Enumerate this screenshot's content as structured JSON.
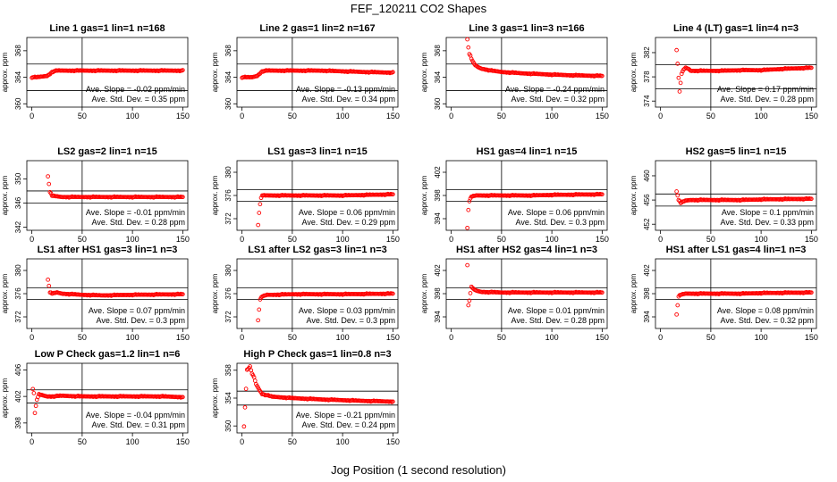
{
  "figure": {
    "title": "FEF_120211  CO2 Shapes",
    "xlabel": "Jog Position (1 second resolution)",
    "marker_color": "#ff0000"
  },
  "chart_data": [
    {
      "type": "scatter",
      "title": "Line 1 gas=1 lin=1 n=168",
      "ylabel": "approx. ppm",
      "xlim": [
        -5,
        155
      ],
      "ylim": [
        359.5,
        370
      ],
      "yticks": [
        360,
        364,
        368
      ],
      "xticks": [
        0,
        50,
        100,
        150
      ],
      "hlines": [
        366,
        362
      ],
      "vline": 50,
      "slope_text": "Ave. Slope = -0.02  ppm/min",
      "std_text": "Ave. Std. Dev. = 0.35  ppm",
      "points": [
        [
          0,
          364.0
        ],
        [
          5,
          364.0
        ],
        [
          10,
          364.1
        ],
        [
          15,
          364.2
        ],
        [
          18,
          364.5
        ],
        [
          20,
          364.8
        ],
        [
          22,
          364.9
        ],
        [
          25,
          365.0
        ],
        [
          30,
          365.0
        ],
        [
          40,
          365.0
        ],
        [
          60,
          365.0
        ],
        [
          80,
          365.0
        ],
        [
          100,
          365.0
        ],
        [
          120,
          365.0
        ],
        [
          150,
          365.0
        ]
      ]
    },
    {
      "type": "scatter",
      "title": "Line 2 gas=1 lin=2 n=167",
      "ylabel": "approx. ppm",
      "xlim": [
        -5,
        155
      ],
      "ylim": [
        359.5,
        370
      ],
      "yticks": [
        360,
        364,
        368
      ],
      "xticks": [
        0,
        50,
        100,
        150
      ],
      "hlines": [
        366,
        362
      ],
      "vline": 50,
      "slope_text": "Ave. Slope = -0.13  ppm/min",
      "std_text": "Ave. Std. Dev. = 0.34  ppm",
      "points": [
        [
          0,
          364.0
        ],
        [
          5,
          364.0
        ],
        [
          10,
          364.0
        ],
        [
          15,
          364.2
        ],
        [
          18,
          364.6
        ],
        [
          20,
          364.9
        ],
        [
          25,
          365.0
        ],
        [
          30,
          365.0
        ],
        [
          50,
          365.0
        ],
        [
          80,
          365.0
        ],
        [
          100,
          364.9
        ],
        [
          120,
          364.8
        ],
        [
          150,
          364.7
        ]
      ]
    },
    {
      "type": "scatter",
      "title": "Line 3 gas=1 lin=3 n=166",
      "ylabel": "approx. ppm",
      "xlim": [
        -5,
        155
      ],
      "ylim": [
        359.5,
        370
      ],
      "yticks": [
        360,
        364,
        368
      ],
      "xticks": [
        0,
        50,
        100,
        150
      ],
      "hlines": [
        366,
        362
      ],
      "vline": 50,
      "slope_text": "Ave. Slope = -0.24  ppm/min",
      "std_text": "Ave. Std. Dev. = 0.32  ppm",
      "points": [
        [
          16,
          369.8
        ],
        [
          17,
          368.5
        ],
        [
          18,
          367.5
        ],
        [
          19,
          367.2
        ],
        [
          20,
          366.8
        ],
        [
          22,
          366.2
        ],
        [
          24,
          365.8
        ],
        [
          27,
          365.5
        ],
        [
          30,
          365.3
        ],
        [
          40,
          365.0
        ],
        [
          50,
          364.8
        ],
        [
          70,
          364.6
        ],
        [
          100,
          364.4
        ],
        [
          120,
          364.3
        ],
        [
          150,
          364.2
        ]
      ]
    },
    {
      "type": "scatter",
      "title": "Line 4 (LT) gas=1 lin=4 n=3",
      "ylabel": "approx. ppm",
      "xlim": [
        -5,
        155
      ],
      "ylim": [
        373,
        384.5
      ],
      "yticks": [
        374,
        378,
        382
      ],
      "xticks": [
        0,
        50,
        100,
        150
      ],
      "hlines": [
        380,
        376
      ],
      "vline": 50,
      "slope_text": "Ave. Slope = 0.17  ppm/min",
      "std_text": "Ave. Std. Dev. = 0.28  ppm",
      "points": [
        [
          16,
          382.5
        ],
        [
          19,
          375.5
        ],
        [
          21,
          378.5
        ],
        [
          23,
          379.2
        ],
        [
          25,
          379.5
        ],
        [
          28,
          379.3
        ],
        [
          30,
          379.0
        ],
        [
          40,
          379.0
        ],
        [
          60,
          379.0
        ],
        [
          80,
          379.1
        ],
        [
          100,
          379.1
        ],
        [
          120,
          379.3
        ],
        [
          150,
          379.5
        ]
      ]
    },
    {
      "type": "scatter",
      "title": "LS2 gas=2 lin=1 n=15",
      "ylabel": "approx. ppm",
      "xlim": [
        -5,
        155
      ],
      "ylim": [
        341.5,
        353
      ],
      "yticks": [
        342,
        346,
        350
      ],
      "xticks": [
        0,
        50,
        100,
        150
      ],
      "hlines": [
        348,
        346
      ],
      "vline": 50,
      "slope_text": "Ave. Slope = -0.01  ppm/min",
      "std_text": "Ave. Std. Dev. = 0.28  ppm",
      "points": [
        [
          16,
          350.5
        ],
        [
          18,
          347.8
        ],
        [
          20,
          347.2
        ],
        [
          25,
          347.1
        ],
        [
          30,
          347.0
        ],
        [
          50,
          347.0
        ],
        [
          80,
          347.0
        ],
        [
          100,
          347.0
        ],
        [
          150,
          347.0
        ]
      ]
    },
    {
      "type": "scatter",
      "title": "LS1 gas=3 lin=1 n=15",
      "ylabel": "approx. ppm",
      "xlim": [
        -5,
        155
      ],
      "ylim": [
        370,
        382
      ],
      "yticks": [
        372,
        376,
        380
      ],
      "xticks": [
        0,
        50,
        100,
        150
      ],
      "hlines": [
        377,
        375
      ],
      "vline": 50,
      "slope_text": "Ave. Slope = 0.06  ppm/min",
      "std_text": "Ave. Std. Dev. = 0.29  ppm",
      "points": [
        [
          16,
          371.0
        ],
        [
          17,
          373.0
        ],
        [
          18,
          374.5
        ],
        [
          19,
          375.5
        ],
        [
          20,
          376.0
        ],
        [
          25,
          376.0
        ],
        [
          30,
          376.0
        ],
        [
          50,
          376.0
        ],
        [
          80,
          376.0
        ],
        [
          100,
          376.0
        ],
        [
          150,
          376.2
        ]
      ]
    },
    {
      "type": "scatter",
      "title": "HS1 gas=4 lin=1 n=15",
      "ylabel": "approx. ppm",
      "xlim": [
        -5,
        155
      ],
      "ylim": [
        392,
        404
      ],
      "yticks": [
        394,
        398,
        402
      ],
      "xticks": [
        0,
        50,
        100,
        150
      ],
      "hlines": [
        399,
        397
      ],
      "vline": 50,
      "slope_text": "Ave. Slope = 0.06  ppm/min",
      "std_text": "Ave. Std. Dev. = 0.3  ppm",
      "points": [
        [
          16,
          392.5
        ],
        [
          17,
          395.5
        ],
        [
          18,
          397.0
        ],
        [
          20,
          397.8
        ],
        [
          25,
          398.0
        ],
        [
          30,
          398.0
        ],
        [
          50,
          398.0
        ],
        [
          80,
          398.0
        ],
        [
          100,
          398.1
        ],
        [
          150,
          398.2
        ]
      ]
    },
    {
      "type": "scatter",
      "title": "HS2 gas=5 lin=1 n=15",
      "ylabel": "approx. ppm",
      "xlim": [
        -5,
        155
      ],
      "ylim": [
        451,
        462.5
      ],
      "yticks": [
        452,
        456,
        460
      ],
      "xticks": [
        0,
        50,
        100,
        150
      ],
      "hlines": [
        457,
        455
      ],
      "vline": 50,
      "slope_text": "Ave. Slope = 0.1  ppm/min",
      "std_text": "Ave. Std. Dev. = 0.33  ppm",
      "points": [
        [
          16,
          457.5
        ],
        [
          18,
          456.0
        ],
        [
          20,
          455.5
        ],
        [
          22,
          455.7
        ],
        [
          25,
          455.9
        ],
        [
          30,
          456.0
        ],
        [
          50,
          456.0
        ],
        [
          80,
          456.0
        ],
        [
          100,
          456.1
        ],
        [
          150,
          456.2
        ]
      ]
    },
    {
      "type": "scatter",
      "title": "LS1 after HS1 gas=3 lin=1 n=3",
      "ylabel": "approx. ppm",
      "xlim": [
        -5,
        155
      ],
      "ylim": [
        370,
        382
      ],
      "yticks": [
        372,
        376,
        380
      ],
      "xticks": [
        0,
        50,
        100,
        150
      ],
      "hlines": [
        377,
        375
      ],
      "vline": 50,
      "slope_text": "Ave. Slope = 0.07  ppm/min",
      "std_text": "Ave. Std. Dev. = 0.3  ppm",
      "points": [
        [
          16,
          378.5
        ],
        [
          18,
          376.2
        ],
        [
          20,
          376.0
        ],
        [
          25,
          376.2
        ],
        [
          30,
          376.0
        ],
        [
          50,
          375.8
        ],
        [
          70,
          375.7
        ],
        [
          100,
          375.8
        ],
        [
          150,
          375.9
        ]
      ]
    },
    {
      "type": "scatter",
      "title": "LS1 after LS2 gas=3 lin=1 n=3",
      "ylabel": "approx. ppm",
      "xlim": [
        -5,
        155
      ],
      "ylim": [
        370,
        382
      ],
      "yticks": [
        372,
        376,
        380
      ],
      "xticks": [
        0,
        50,
        100,
        150
      ],
      "hlines": [
        377,
        375
      ],
      "vline": 50,
      "slope_text": "Ave. Slope = 0.03  ppm/min",
      "std_text": "Ave. Std. Dev. = 0.3  ppm",
      "points": [
        [
          16,
          371.5
        ],
        [
          18,
          375.0
        ],
        [
          20,
          375.5
        ],
        [
          25,
          375.8
        ],
        [
          30,
          375.8
        ],
        [
          50,
          375.9
        ],
        [
          80,
          375.9
        ],
        [
          100,
          375.9
        ],
        [
          150,
          376.0
        ]
      ]
    },
    {
      "type": "scatter",
      "title": "HS1 after HS2 gas=4 lin=1 n=3",
      "ylabel": "approx. ppm",
      "xlim": [
        -5,
        155
      ],
      "ylim": [
        392,
        404
      ],
      "yticks": [
        394,
        398,
        402
      ],
      "xticks": [
        0,
        50,
        100,
        150
      ],
      "hlines": [
        399,
        397
      ],
      "vline": 50,
      "slope_text": "Ave. Slope = 0.01  ppm/min",
      "std_text": "Ave. Std. Dev. = 0.28  ppm",
      "points": [
        [
          16,
          403.0
        ],
        [
          17,
          396.0
        ],
        [
          18,
          396.8
        ],
        [
          20,
          399.2
        ],
        [
          22,
          398.8
        ],
        [
          25,
          398.5
        ],
        [
          30,
          398.3
        ],
        [
          50,
          398.2
        ],
        [
          80,
          398.2
        ],
        [
          100,
          398.2
        ],
        [
          150,
          398.2
        ]
      ]
    },
    {
      "type": "scatter",
      "title": "HS1 after LS1 gas=4 lin=1 n=3",
      "ylabel": "approx. ppm",
      "xlim": [
        -5,
        155
      ],
      "ylim": [
        392,
        404
      ],
      "yticks": [
        394,
        398,
        402
      ],
      "xticks": [
        0,
        50,
        100,
        150
      ],
      "hlines": [
        399,
        397
      ],
      "vline": 50,
      "slope_text": "Ave. Slope = 0.08  ppm/min",
      "std_text": "Ave. Std. Dev. = 0.32  ppm",
      "points": [
        [
          16,
          394.5
        ],
        [
          18,
          397.5
        ],
        [
          20,
          397.8
        ],
        [
          25,
          398.0
        ],
        [
          30,
          398.0
        ],
        [
          50,
          398.0
        ],
        [
          80,
          398.0
        ],
        [
          100,
          398.1
        ],
        [
          150,
          398.2
        ]
      ]
    },
    {
      "type": "scatter",
      "title": "Low P Check gas=1.2 lin=1 n=6",
      "ylabel": "approx. ppm",
      "xlim": [
        -5,
        155
      ],
      "ylim": [
        396.5,
        407
      ],
      "yticks": [
        398,
        402,
        406
      ],
      "xticks": [
        0,
        50,
        100,
        150
      ],
      "hlines": [
        403,
        401
      ],
      "vline": 50,
      "slope_text": "Ave. Slope = -0.04  ppm/min",
      "std_text": "Ave. Std. Dev. = 0.31  ppm",
      "points": [
        [
          1,
          403.2
        ],
        [
          2,
          402.5
        ],
        [
          3,
          399.5
        ],
        [
          4,
          400.5
        ],
        [
          5,
          401.5
        ],
        [
          7,
          402.3
        ],
        [
          10,
          402.2
        ],
        [
          15,
          402.0
        ],
        [
          20,
          402.0
        ],
        [
          30,
          402.1
        ],
        [
          50,
          402.0
        ],
        [
          80,
          402.0
        ],
        [
          100,
          402.0
        ],
        [
          130,
          402.0
        ],
        [
          150,
          401.9
        ]
      ]
    },
    {
      "type": "scatter",
      "title": "High P Check gas=1 lin=0.8 n=3",
      "ylabel": "approx. ppm",
      "xlim": [
        -5,
        155
      ],
      "ylim": [
        349,
        359
      ],
      "yticks": [
        350,
        354,
        358
      ],
      "xticks": [
        0,
        50,
        100,
        150
      ],
      "hlines": [
        355,
        353
      ],
      "vline": 50,
      "slope_text": "Ave. Slope = -0.21  ppm/min",
      "std_text": "Ave. Std. Dev. = 0.24  ppm",
      "points": [
        [
          2,
          350.0
        ],
        [
          5,
          358.0
        ],
        [
          8,
          358.5
        ],
        [
          10,
          357.5
        ],
        [
          12,
          357.0
        ],
        [
          14,
          356.0
        ],
        [
          16,
          355.5
        ],
        [
          18,
          355.0
        ],
        [
          20,
          354.6
        ],
        [
          25,
          354.4
        ],
        [
          30,
          354.2
        ],
        [
          50,
          354.0
        ],
        [
          80,
          353.8
        ],
        [
          100,
          353.7
        ],
        [
          120,
          353.6
        ],
        [
          150,
          353.5
        ]
      ]
    }
  ]
}
